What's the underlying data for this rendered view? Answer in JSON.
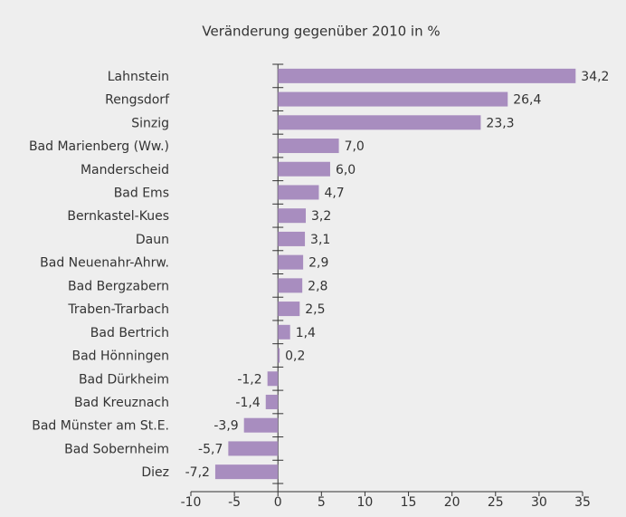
{
  "chart_data": {
    "type": "bar",
    "orientation": "horizontal",
    "title": "Veränderung gegenüber 2010 in %",
    "categories": [
      "Lahnstein",
      "Rengsdorf",
      "Sinzig",
      "Bad Marienberg (Ww.)",
      "Manderscheid",
      "Bad Ems",
      "Bernkastel-Kues",
      "Daun",
      "Bad Neuenahr-Ahrw.",
      "Bad Bergzabern",
      "Traben-Trarbach",
      "Bad Bertrich",
      "Bad Hönningen",
      "Bad Dürkheim",
      "Bad Kreuznach",
      "Bad Münster am St.E.",
      "Bad Sobernheim",
      "Diez"
    ],
    "values": [
      34.2,
      26.4,
      23.3,
      7.0,
      6.0,
      4.7,
      3.2,
      3.1,
      2.9,
      2.8,
      2.5,
      1.4,
      0.2,
      -1.2,
      -1.4,
      -3.9,
      -5.7,
      -7.2
    ],
    "value_labels": [
      "34,2",
      "26,4",
      "23,3",
      "7,0",
      "6,0",
      "4,7",
      "3,2",
      "3,1",
      "2,9",
      "2,8",
      "2,5",
      "1,4",
      "0,2",
      "-1,2",
      "-1,4",
      "-3,9",
      "-5,7",
      "-7,2"
    ],
    "color": "#a88dbf",
    "xlim": [
      -10,
      35
    ],
    "xticks": [
      -10,
      -5,
      0,
      5,
      10,
      15,
      20,
      25,
      30,
      35
    ]
  }
}
